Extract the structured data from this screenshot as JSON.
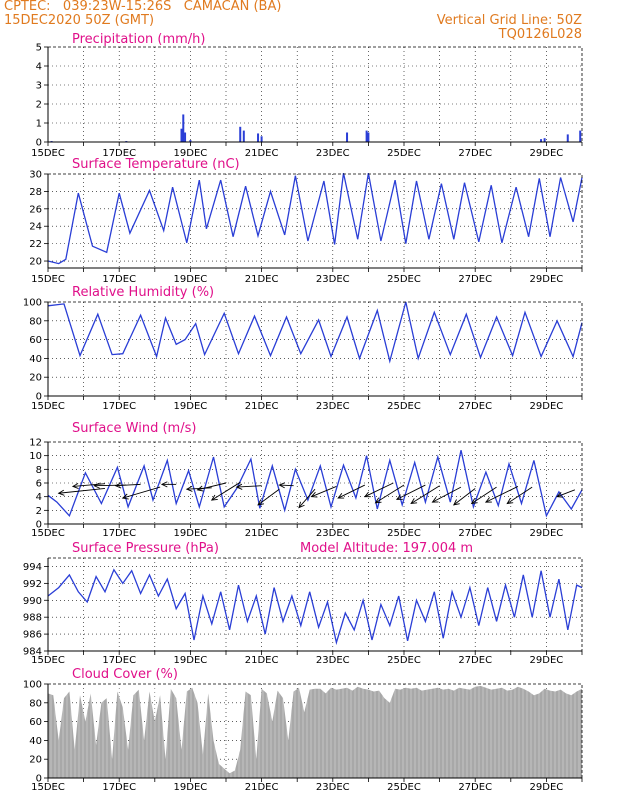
{
  "header": {
    "line1": "CPTEC:   039:23W-15:26S   CAMACAN (BA)",
    "line2": "15DEC2020 50Z (GMT)",
    "right1": "Vertical Grid Line: 50Z",
    "right2": "TQ0126L028"
  },
  "colors": {
    "header": "#e07a1f",
    "title": "#e0108a",
    "line": "#2a3ed6",
    "cloud": "#a8a8a8",
    "arrow": "#000000"
  },
  "chart_data": [
    {
      "id": "precip",
      "type": "bar",
      "title": "Precipitation (mm/h)",
      "ylim": [
        0,
        5
      ],
      "yticks": [
        0,
        1,
        2,
        3,
        4,
        5
      ],
      "xticks": [
        "15DEC",
        "17DEC",
        "19DEC",
        "21DEC",
        "23DEC",
        "25DEC",
        "27DEC",
        "29DEC"
      ],
      "xtick_days": [
        0,
        2,
        4,
        6,
        8,
        10,
        12,
        14
      ],
      "xlim_days": [
        0,
        15
      ],
      "bars": [
        [
          0.1,
          0.05
        ],
        [
          2.2,
          0.05
        ],
        [
          3.75,
          0.7
        ],
        [
          3.8,
          1.45
        ],
        [
          3.85,
          0.5
        ],
        [
          4.0,
          0.1
        ],
        [
          5.4,
          0.8
        ],
        [
          5.5,
          0.6
        ],
        [
          5.9,
          0.45
        ],
        [
          6.0,
          0.3
        ],
        [
          8.4,
          0.5
        ],
        [
          8.95,
          0.6
        ],
        [
          9.0,
          0.5
        ],
        [
          13.85,
          0.15
        ],
        [
          13.95,
          0.2
        ],
        [
          14.6,
          0.4
        ],
        [
          14.95,
          0.6
        ]
      ]
    },
    {
      "id": "temp",
      "type": "line",
      "title": "Surface Temperature (nC)",
      "ylim": [
        19.2,
        30
      ],
      "yticks": [
        20,
        22,
        24,
        26,
        28,
        30
      ],
      "xticks": [
        "15DEC",
        "17DEC",
        "19DEC",
        "21DEC",
        "23DEC",
        "25DEC",
        "27DEC",
        "29DEC"
      ],
      "xtick_days": [
        0,
        2,
        4,
        6,
        8,
        10,
        12,
        14
      ],
      "xlim_days": [
        0,
        15
      ],
      "x": [
        0,
        0.3,
        0.5,
        0.85,
        1.25,
        1.65,
        2.0,
        2.3,
        2.85,
        3.25,
        3.5,
        3.9,
        4.25,
        4.45,
        4.85,
        5.2,
        5.55,
        5.9,
        6.25,
        6.65,
        6.95,
        7.3,
        7.75,
        8.05,
        8.3,
        8.7,
        9.0,
        9.35,
        9.75,
        10.05,
        10.35,
        10.7,
        11.05,
        11.4,
        11.7,
        12.1,
        12.45,
        12.75,
        13.15,
        13.5,
        13.8,
        14.1,
        14.4,
        14.75,
        15.0
      ],
      "y": [
        20,
        19.7,
        20.2,
        27.8,
        21.7,
        21.0,
        27.8,
        23.2,
        28.1,
        23.5,
        28.5,
        22.1,
        29.3,
        23.7,
        29.3,
        22.8,
        28.6,
        22.9,
        28.0,
        23.0,
        29.8,
        22.3,
        29.2,
        21.9,
        30.1,
        22.5,
        30.1,
        22.3,
        29.3,
        22.0,
        29.2,
        22.5,
        28.9,
        22.5,
        29.0,
        22.2,
        28.7,
        22.1,
        28.5,
        22.8,
        29.5,
        22.8,
        29.6,
        24.5,
        29.6
      ]
    },
    {
      "id": "rh",
      "type": "line",
      "title": "Relative Humidity (%)",
      "ylim": [
        0,
        100
      ],
      "yticks": [
        0,
        20,
        40,
        60,
        80,
        100
      ],
      "xticks": [
        "15DEC",
        "17DEC",
        "19DEC",
        "21DEC",
        "23DEC",
        "25DEC",
        "27DEC",
        "29DEC"
      ],
      "xtick_days": [
        0,
        2,
        4,
        6,
        8,
        10,
        12,
        14
      ],
      "xlim_days": [
        0,
        15
      ],
      "x": [
        0,
        0.45,
        0.9,
        1.4,
        1.8,
        2.1,
        2.6,
        3.05,
        3.3,
        3.6,
        3.85,
        4.15,
        4.4,
        4.95,
        5.35,
        5.8,
        6.25,
        6.7,
        7.1,
        7.6,
        7.95,
        8.4,
        8.75,
        9.25,
        9.6,
        10.05,
        10.4,
        10.85,
        11.3,
        11.75,
        12.15,
        12.6,
        13.05,
        13.4,
        13.85,
        14.3,
        14.75,
        15.0
      ],
      "y": [
        96,
        98,
        43,
        87,
        44,
        45,
        86,
        42,
        83,
        55,
        60,
        77,
        44,
        88,
        45,
        85,
        43,
        84,
        45,
        81,
        42,
        84,
        40,
        91,
        37,
        100,
        40,
        89,
        44,
        87,
        41,
        84,
        43,
        89,
        42,
        80,
        42,
        78
      ]
    },
    {
      "id": "wind",
      "type": "line",
      "title": "Surface Wind (m/s)",
      "ylim": [
        0,
        12
      ],
      "yticks": [
        0,
        2,
        4,
        6,
        8,
        10,
        12
      ],
      "xticks": [
        "15DEC",
        "17DEC",
        "19DEC",
        "21DEC",
        "23DEC",
        "25DEC",
        "27DEC",
        "29DEC"
      ],
      "xtick_days": [
        0,
        2,
        4,
        6,
        8,
        10,
        12,
        14
      ],
      "xlim_days": [
        0,
        15
      ],
      "x": [
        0,
        0.25,
        0.6,
        1.05,
        1.5,
        1.95,
        2.25,
        2.7,
        2.95,
        3.35,
        3.6,
        3.95,
        4.25,
        4.65,
        4.95,
        5.3,
        5.7,
        5.95,
        6.3,
        6.65,
        6.95,
        7.3,
        7.65,
        7.95,
        8.3,
        8.65,
        8.95,
        9.25,
        9.6,
        9.95,
        10.3,
        10.6,
        10.95,
        11.3,
        11.6,
        11.95,
        12.3,
        12.65,
        12.95,
        13.3,
        13.65,
        14.0,
        14.35,
        14.7,
        15.0
      ],
      "y": [
        4.2,
        3.2,
        1.2,
        7.5,
        3.0,
        8.3,
        2.5,
        8.5,
        3.5,
        9.3,
        3.0,
        7.8,
        2.5,
        9.8,
        2.5,
        5.2,
        9.5,
        2.3,
        8.5,
        2.0,
        8.0,
        3.5,
        8.5,
        2.5,
        8.6,
        3.8,
        10.0,
        2.2,
        9.3,
        2.8,
        9.0,
        3.2,
        9.8,
        3.2,
        10.8,
        2.5,
        7.6,
        2.7,
        8.8,
        3.0,
        9.3,
        1.2,
        4.7,
        2.2,
        5.0
      ],
      "arrows": [
        [
          0.3,
          4.5,
          1.6,
          5.2
        ],
        [
          0.7,
          5.5,
          1.6,
          5.9
        ],
        [
          1.3,
          5.6,
          2.2,
          5.7
        ],
        [
          1.9,
          5.6,
          2.6,
          5.8
        ],
        [
          2.1,
          3.8,
          3.15,
          5.4
        ],
        [
          3.2,
          5.8,
          3.6,
          5.8
        ],
        [
          3.9,
          5.1,
          4.6,
          5.3
        ],
        [
          4.2,
          5.0,
          5.0,
          6.0
        ],
        [
          4.6,
          3.5,
          5.4,
          6.1
        ],
        [
          5.3,
          5.4,
          6.0,
          5.6
        ],
        [
          5.9,
          2.8,
          6.5,
          5.1
        ],
        [
          6.5,
          5.7,
          6.9,
          5.6
        ],
        [
          7.05,
          2.4,
          7.5,
          5.1
        ],
        [
          7.4,
          4.0,
          8.1,
          5.5
        ],
        [
          8.15,
          3.8,
          8.9,
          5.7
        ],
        [
          8.9,
          4.0,
          9.7,
          6.0
        ],
        [
          9.2,
          3.1,
          10.0,
          5.7
        ],
        [
          9.8,
          3.6,
          10.6,
          5.7
        ],
        [
          10.2,
          3.0,
          11.0,
          5.6
        ],
        [
          10.8,
          3.2,
          11.6,
          5.4
        ],
        [
          11.4,
          2.8,
          12.0,
          5.2
        ],
        [
          11.9,
          3.0,
          12.6,
          5.4
        ],
        [
          12.3,
          3.2,
          13.2,
          5.5
        ],
        [
          12.9,
          3.0,
          13.6,
          5.4
        ],
        [
          14.3,
          4.0,
          14.8,
          5.0
        ]
      ]
    },
    {
      "id": "pressure",
      "type": "line",
      "title": "Surface Pressure (hPa)",
      "annotation": "Model Altitude: 197.004 m",
      "ylim": [
        984,
        995
      ],
      "yticks": [
        984,
        986,
        988,
        990,
        992,
        994
      ],
      "xticks": [
        "15DEC",
        "17DEC",
        "19DEC",
        "21DEC",
        "23DEC",
        "25DEC",
        "27DEC",
        "29DEC"
      ],
      "xtick_days": [
        0,
        2,
        4,
        6,
        8,
        10,
        12,
        14
      ],
      "xlim_days": [
        0,
        15
      ],
      "x": [
        0,
        0.3,
        0.6,
        0.85,
        1.1,
        1.35,
        1.6,
        1.85,
        2.1,
        2.35,
        2.6,
        2.85,
        3.1,
        3.35,
        3.6,
        3.85,
        4.1,
        4.35,
        4.6,
        4.85,
        5.1,
        5.35,
        5.6,
        5.85,
        6.1,
        6.35,
        6.6,
        6.85,
        7.1,
        7.35,
        7.6,
        7.85,
        8.1,
        8.35,
        8.6,
        8.85,
        9.1,
        9.35,
        9.6,
        9.85,
        10.1,
        10.35,
        10.6,
        10.85,
        11.1,
        11.35,
        11.6,
        11.85,
        12.1,
        12.35,
        12.6,
        12.85,
        13.1,
        13.35,
        13.6,
        13.85,
        14.1,
        14.35,
        14.6,
        14.85,
        15.0
      ],
      "y": [
        990.5,
        991.5,
        993.0,
        991.0,
        989.8,
        992.8,
        991.0,
        993.6,
        992.0,
        993.5,
        990.8,
        993.0,
        990.5,
        992.5,
        989.0,
        990.8,
        985.3,
        990.5,
        987.2,
        991.0,
        986.5,
        991.8,
        987.5,
        990.5,
        986.0,
        991.5,
        987.5,
        990.5,
        987.0,
        991.0,
        986.8,
        989.8,
        985.0,
        988.5,
        986.5,
        990.0,
        985.3,
        989.5,
        987.0,
        990.5,
        985.2,
        990.0,
        987.5,
        991.0,
        985.5,
        991.0,
        988.0,
        991.5,
        987.0,
        991.5,
        987.5,
        991.8,
        988.0,
        993.0,
        988.0,
        993.5,
        988.0,
        992.5,
        986.5,
        991.8,
        991.5
      ]
    },
    {
      "id": "cloud",
      "type": "area",
      "title": "Cloud Cover (%)",
      "ylim": [
        0,
        100
      ],
      "yticks": [
        0,
        20,
        40,
        60,
        80,
        100
      ],
      "xticks": [
        "15DEC",
        "17DEC",
        "19DEC",
        "21DEC",
        "23DEC",
        "25DEC",
        "27DEC",
        "29DEC"
      ],
      "xtick_days": [
        0,
        2,
        4,
        6,
        8,
        10,
        12,
        14
      ],
      "xlim_days": [
        0,
        15
      ],
      "x": [
        0,
        0.15,
        0.3,
        0.45,
        0.6,
        0.75,
        0.9,
        1.05,
        1.2,
        1.35,
        1.5,
        1.65,
        1.8,
        1.95,
        2.1,
        2.25,
        2.4,
        2.55,
        2.7,
        2.85,
        3.0,
        3.15,
        3.3,
        3.45,
        3.6,
        3.75,
        3.9,
        4.05,
        4.2,
        4.35,
        4.5,
        4.65,
        4.8,
        4.95,
        5.1,
        5.25,
        5.4,
        5.55,
        5.7,
        5.85,
        6.0,
        6.15,
        6.3,
        6.45,
        6.6,
        6.75,
        6.9,
        7.05,
        7.2,
        7.35,
        7.5,
        7.65,
        7.8,
        7.95,
        8.1,
        8.25,
        8.4,
        8.55,
        8.7,
        8.85,
        9.0,
        9.15,
        9.3,
        9.45,
        9.6,
        9.75,
        9.9,
        10.05,
        10.2,
        10.35,
        10.5,
        10.65,
        10.8,
        10.95,
        11.1,
        11.25,
        11.4,
        11.55,
        11.7,
        11.85,
        12.0,
        12.15,
        12.3,
        12.45,
        12.6,
        12.75,
        12.9,
        13.05,
        13.2,
        13.35,
        13.5,
        13.65,
        13.8,
        13.95,
        14.1,
        14.25,
        14.4,
        14.55,
        14.7,
        14.85,
        15.0
      ],
      "y": [
        90,
        88,
        40,
        85,
        92,
        30,
        88,
        60,
        90,
        35,
        80,
        85,
        20,
        92,
        75,
        30,
        88,
        94,
        40,
        92,
        60,
        88,
        20,
        95,
        85,
        30,
        92,
        96,
        80,
        25,
        90,
        40,
        15,
        10,
        5,
        8,
        30,
        92,
        88,
        20,
        95,
        90,
        60,
        93,
        85,
        40,
        92,
        96,
        70,
        94,
        95,
        95,
        90,
        96,
        94,
        95,
        96,
        93,
        97,
        95,
        94,
        92,
        93,
        85,
        80,
        95,
        94,
        96,
        95,
        96,
        93,
        94,
        95,
        96,
        94,
        95,
        93,
        96,
        95,
        94,
        97,
        98,
        96,
        94,
        95,
        96,
        93,
        94,
        97,
        95,
        92,
        88,
        90,
        95,
        93,
        92,
        94,
        90,
        88,
        92,
        95
      ]
    }
  ]
}
